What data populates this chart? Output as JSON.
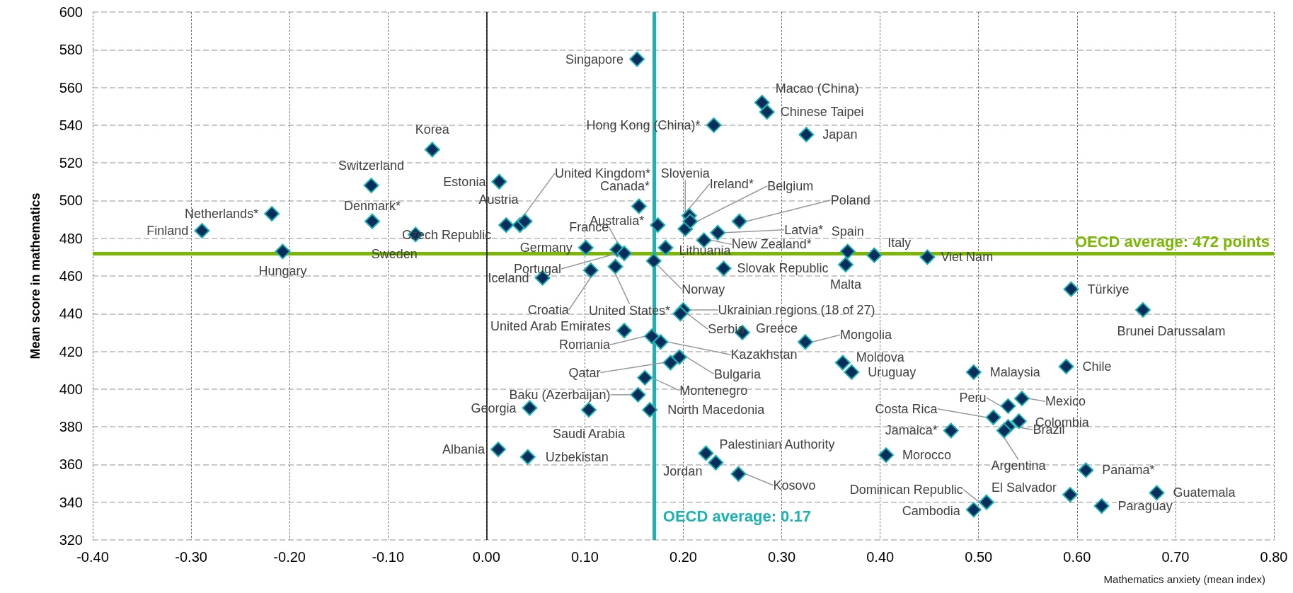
{
  "chart_data": {
    "type": "scatter",
    "xlabel": "Mathematics anxiety (mean index)",
    "ylabel": "Mean score in mathematics",
    "xlim": [
      -0.4,
      0.8
    ],
    "xticks": [
      {
        "value": -0.4,
        "label": "-0.40"
      },
      {
        "value": -0.3,
        "label": "-0.30"
      },
      {
        "value": -0.2,
        "label": "-0.20"
      },
      {
        "value": -0.1,
        "label": "-0.10"
      },
      {
        "value": 0,
        "label": "0.00"
      },
      {
        "value": 0.1,
        "label": "0.10"
      },
      {
        "value": 0.2,
        "label": "0.20"
      },
      {
        "value": 0.3,
        "label": "0.30"
      },
      {
        "value": 0.4,
        "label": "0.40"
      },
      {
        "value": 0.5,
        "label": "0.50"
      },
      {
        "value": 0.6,
        "label": "0.60"
      },
      {
        "value": 0.7,
        "label": "0.70"
      },
      {
        "value": 0.8,
        "label": "0.80"
      }
    ],
    "ylim": [
      320,
      600
    ],
    "yticks": [
      320,
      340,
      360,
      380,
      400,
      420,
      440,
      460,
      480,
      500,
      520,
      540,
      560,
      580,
      600
    ],
    "grid": true,
    "marker": "diamond",
    "legend": false,
    "ref_lines": [
      {
        "axis": "y",
        "value": 472,
        "label": "OECD average: 472 points",
        "color": "#7ab800"
      },
      {
        "axis": "x",
        "value": 0.17,
        "label": "OECD average: 0.17",
        "color": "#1ab3b3"
      },
      {
        "axis": "x",
        "value": 0,
        "color": "#000000"
      }
    ],
    "series": [
      {
        "name": "Finland",
        "color": "#0b2d5b",
        "x": [
          -0.289
        ],
        "values": [
          484
        ]
      },
      {
        "name": "Netherlands*",
        "color": "#0b2d5b",
        "x": [
          -0.218
        ],
        "values": [
          493
        ]
      },
      {
        "name": "Hungary",
        "color": "#0b2d5b",
        "x": [
          -0.207
        ],
        "values": [
          473
        ]
      },
      {
        "name": "Switzerland",
        "color": "#0b2d5b",
        "x": [
          -0.117
        ],
        "values": [
          508
        ]
      },
      {
        "name": "Denmark*",
        "color": "#0b2d5b",
        "x": [
          -0.116
        ],
        "values": [
          489
        ]
      },
      {
        "name": "Sweden",
        "color": "#0b2d5b",
        "x": [
          -0.072
        ],
        "values": [
          482
        ]
      },
      {
        "name": "Korea",
        "color": "#0b2d5b",
        "x": [
          -0.055
        ],
        "values": [
          527
        ]
      },
      {
        "name": "Czech Republic",
        "color": "#0b2d5b",
        "x": [
          0.02
        ],
        "values": [
          487
        ]
      },
      {
        "name": "Austria",
        "color": "#0b2d5b",
        "x": [
          0.034
        ],
        "values": [
          487
        ]
      },
      {
        "name": "Estonia",
        "color": "#0b2d5b",
        "x": [
          0.013
        ],
        "values": [
          510
        ]
      },
      {
        "name": "United Kingdom*",
        "color": "#0b2d5b",
        "x": [
          0.039
        ],
        "values": [
          489
        ]
      },
      {
        "name": "Canada*",
        "color": "#0b2d5b",
        "x": [
          0.155
        ],
        "values": [
          497
        ]
      },
      {
        "name": "Australia*",
        "color": "#0b2d5b",
        "x": [
          0.174
        ],
        "values": [
          487
        ]
      },
      {
        "name": "Slovenia",
        "color": "#0b2d5b",
        "x": [
          0.202
        ],
        "values": [
          485
        ]
      },
      {
        "name": "Ireland*",
        "color": "#0b2d5b",
        "x": [
          0.206
        ],
        "values": [
          492
        ]
      },
      {
        "name": "Belgium",
        "color": "#0b2d5b",
        "x": [
          0.207
        ],
        "values": [
          489
        ]
      },
      {
        "name": "Poland",
        "color": "#0b2d5b",
        "x": [
          0.257
        ],
        "values": [
          489
        ]
      },
      {
        "name": "Latvia*",
        "color": "#0b2d5b",
        "x": [
          0.235
        ],
        "values": [
          483
        ]
      },
      {
        "name": "New Zealand*",
        "color": "#0b2d5b",
        "x": [
          0.221
        ],
        "values": [
          479
        ]
      },
      {
        "name": "Lithuania",
        "color": "#0b2d5b",
        "x": [
          0.182
        ],
        "values": [
          475
        ]
      },
      {
        "name": "Germany",
        "color": "#0b2d5b",
        "x": [
          0.101
        ],
        "values": [
          475
        ]
      },
      {
        "name": "France",
        "color": "#0b2d5b",
        "x": [
          0.133
        ],
        "values": [
          474
        ]
      },
      {
        "name": "Portugal",
        "color": "#0b2d5b",
        "x": [
          0.14
        ],
        "values": [
          472
        ]
      },
      {
        "name": "Norway",
        "color": "#0b2d5b",
        "x": [
          0.17
        ],
        "values": [
          468
        ]
      },
      {
        "name": "Iceland",
        "color": "#0b2d5b",
        "x": [
          0.057
        ],
        "values": [
          459
        ]
      },
      {
        "name": "Croatia",
        "color": "#0b2d5b",
        "x": [
          0.106
        ],
        "values": [
          463
        ]
      },
      {
        "name": "United States*",
        "color": "#0b2d5b",
        "x": [
          0.131
        ],
        "values": [
          465
        ]
      },
      {
        "name": "Slovak Republic",
        "color": "#0b2d5b",
        "x": [
          0.241
        ],
        "values": [
          464
        ]
      },
      {
        "name": "Spain",
        "color": "#0b2d5b",
        "x": [
          0.367
        ],
        "values": [
          473
        ]
      },
      {
        "name": "Malta",
        "color": "#0b2d5b",
        "x": [
          0.365
        ],
        "values": [
          466
        ]
      },
      {
        "name": "Italy",
        "color": "#0b2d5b",
        "x": [
          0.394
        ],
        "values": [
          471
        ]
      },
      {
        "name": "Viet Nam",
        "color": "#0b2d5b",
        "x": [
          0.448
        ],
        "values": [
          470
        ]
      },
      {
        "name": "Singapore",
        "color": "#0b2d5b",
        "x": [
          0.153
        ],
        "values": [
          575
        ]
      },
      {
        "name": "Macao (China)",
        "color": "#0b2d5b",
        "x": [
          0.28
        ],
        "values": [
          552
        ]
      },
      {
        "name": "Chinese Taipei",
        "color": "#0b2d5b",
        "x": [
          0.285
        ],
        "values": [
          547
        ]
      },
      {
        "name": "Hong Kong (China)*",
        "color": "#0b2d5b",
        "x": [
          0.231
        ],
        "values": [
          540
        ]
      },
      {
        "name": "Japan",
        "color": "#0b2d5b",
        "x": [
          0.325
        ],
        "values": [
          535
        ]
      },
      {
        "name": "Türkiye",
        "color": "#0b2d5b",
        "x": [
          0.594
        ],
        "values": [
          453
        ]
      },
      {
        "name": "Brunei Darussalam",
        "color": "#0b2d5b",
        "x": [
          0.667
        ],
        "values": [
          442
        ]
      },
      {
        "name": "Chile",
        "color": "#0b2d5b",
        "x": [
          0.589
        ],
        "values": [
          412
        ]
      },
      {
        "name": "Malaysia",
        "color": "#0b2d5b",
        "x": [
          0.495
        ],
        "values": [
          409
        ]
      },
      {
        "name": "Mexico",
        "color": "#0b2d5b",
        "x": [
          0.544
        ],
        "values": [
          395
        ]
      },
      {
        "name": "Peru",
        "color": "#0b2d5b",
        "x": [
          0.53
        ],
        "values": [
          391
        ]
      },
      {
        "name": "Costa Rica",
        "color": "#0b2d5b",
        "x": [
          0.515
        ],
        "values": [
          385
        ]
      },
      {
        "name": "Colombia",
        "color": "#0b2d5b",
        "x": [
          0.541
        ],
        "values": [
          383
        ]
      },
      {
        "name": "Brazil",
        "color": "#0b2d5b",
        "x": [
          0.53
        ],
        "values": [
          380
        ]
      },
      {
        "name": "Argentina",
        "color": "#0b2d5b",
        "x": [
          0.526
        ],
        "values": [
          378
        ]
      },
      {
        "name": "Jamaica*",
        "color": "#0b2d5b",
        "x": [
          0.472
        ],
        "values": [
          378
        ]
      },
      {
        "name": "Morocco",
        "color": "#0b2d5b",
        "x": [
          0.406
        ],
        "values": [
          365
        ]
      },
      {
        "name": "Panama*",
        "color": "#0b2d5b",
        "x": [
          0.609
        ],
        "values": [
          357
        ]
      },
      {
        "name": "El Salvador",
        "color": "#0b2d5b",
        "x": [
          0.593
        ],
        "values": [
          344
        ]
      },
      {
        "name": "Guatemala",
        "color": "#0b2d5b",
        "x": [
          0.681
        ],
        "values": [
          345
        ]
      },
      {
        "name": "Paraguay",
        "color": "#0b2d5b",
        "x": [
          0.625
        ],
        "values": [
          338
        ]
      },
      {
        "name": "Dominican Republic",
        "color": "#0b2d5b",
        "x": [
          0.508
        ],
        "values": [
          340
        ]
      },
      {
        "name": "Cambodia",
        "color": "#0b2d5b",
        "x": [
          0.495
        ],
        "values": [
          336
        ]
      },
      {
        "name": "Ukrainian regions (18 of 27)",
        "color": "#0b2d5b",
        "x": [
          0.2
        ],
        "values": [
          442
        ]
      },
      {
        "name": "Serbia",
        "color": "#0b2d5b",
        "x": [
          0.197
        ],
        "values": [
          440
        ]
      },
      {
        "name": "United Arab Emirates",
        "color": "#0b2d5b",
        "x": [
          0.14
        ],
        "values": [
          431
        ]
      },
      {
        "name": "Romania",
        "color": "#0b2d5b",
        "x": [
          0.168
        ],
        "values": [
          428
        ]
      },
      {
        "name": "Kazakhstan",
        "color": "#0b2d5b",
        "x": [
          0.177
        ],
        "values": [
          425
        ]
      },
      {
        "name": "Greece",
        "color": "#0b2d5b",
        "x": [
          0.26
        ],
        "values": [
          430
        ]
      },
      {
        "name": "Mongolia",
        "color": "#0b2d5b",
        "x": [
          0.324
        ],
        "values": [
          425
        ]
      },
      {
        "name": "Bulgaria",
        "color": "#0b2d5b",
        "x": [
          0.196
        ],
        "values": [
          417
        ]
      },
      {
        "name": "Qatar",
        "color": "#0b2d5b",
        "x": [
          0.187
        ],
        "values": [
          414
        ]
      },
      {
        "name": "Moldova",
        "color": "#0b2d5b",
        "x": [
          0.362
        ],
        "values": [
          414
        ]
      },
      {
        "name": "Uruguay",
        "color": "#0b2d5b",
        "x": [
          0.371
        ],
        "values": [
          409
        ]
      },
      {
        "name": "Montenegro",
        "color": "#0b2d5b",
        "x": [
          0.161
        ],
        "values": [
          406
        ]
      },
      {
        "name": "Baku (Azerbaijan)",
        "color": "#0b2d5b",
        "x": [
          0.154
        ],
        "values": [
          397
        ]
      },
      {
        "name": "Georgia",
        "color": "#0b2d5b",
        "x": [
          0.044
        ],
        "values": [
          390
        ]
      },
      {
        "name": "Saudi Arabia",
        "color": "#0b2d5b",
        "x": [
          0.104
        ],
        "values": [
          389
        ]
      },
      {
        "name": "North Macedonia",
        "color": "#0b2d5b",
        "x": [
          0.166
        ],
        "values": [
          389
        ]
      },
      {
        "name": "Albania",
        "color": "#0b2d5b",
        "x": [
          0.012
        ],
        "values": [
          368
        ]
      },
      {
        "name": "Uzbekistan",
        "color": "#0b2d5b",
        "x": [
          0.042
        ],
        "values": [
          364
        ]
      },
      {
        "name": "Palestinian Authority",
        "color": "#0b2d5b",
        "x": [
          0.223
        ],
        "values": [
          366
        ]
      },
      {
        "name": "Jordan",
        "color": "#0b2d5b",
        "x": [
          0.233
        ],
        "values": [
          361
        ]
      },
      {
        "name": "Kosovo",
        "color": "#0b2d5b",
        "x": [
          0.256
        ],
        "values": [
          355
        ]
      }
    ]
  }
}
